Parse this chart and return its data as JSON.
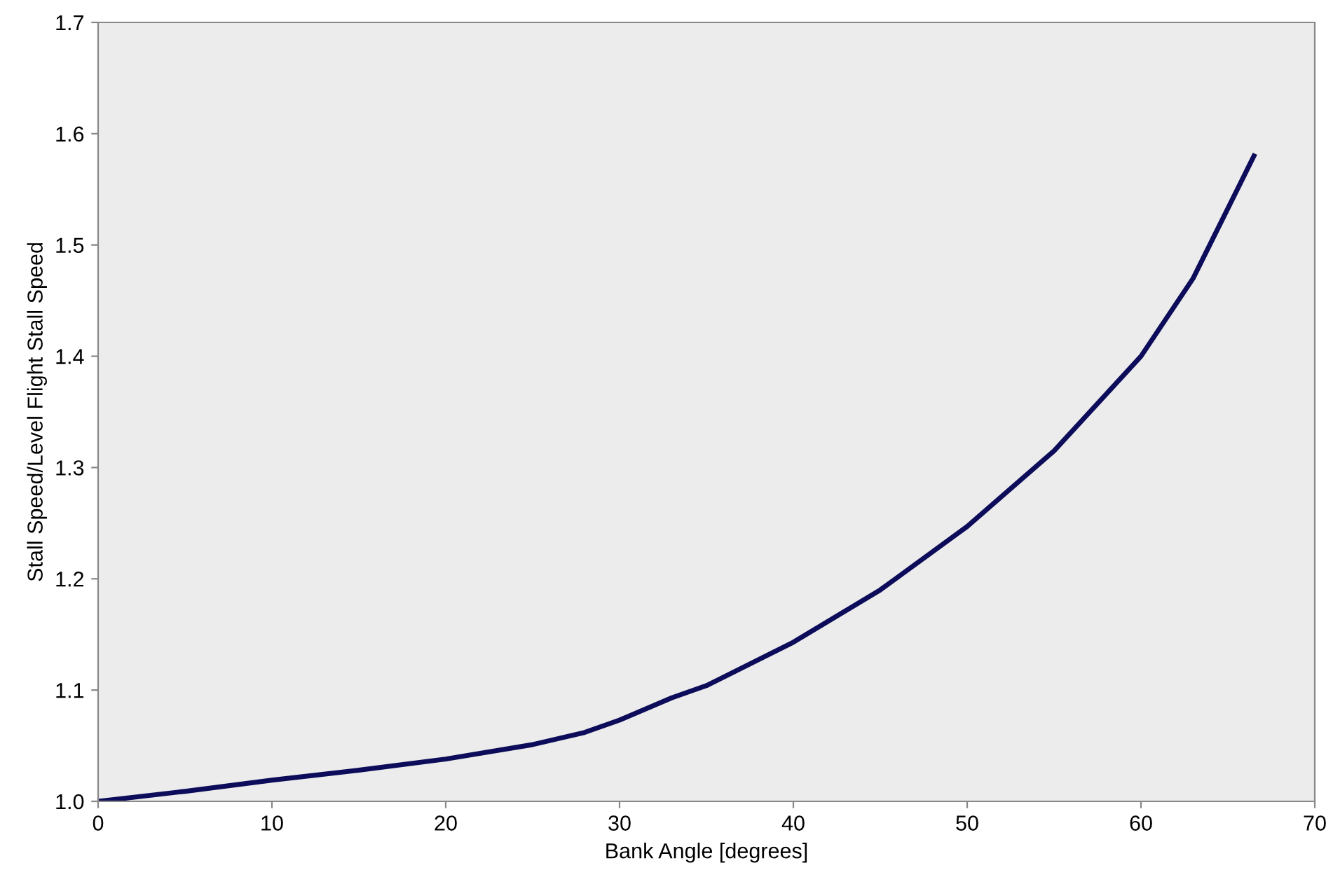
{
  "chart_data": {
    "type": "line",
    "xlabel": "Bank Angle [degrees]",
    "ylabel": "Stall Speed/Level Flight Stall Speed",
    "series": [
      {
        "color": "#0c0c5a",
        "x": [
          0,
          5,
          10,
          15,
          20,
          25,
          28,
          30,
          33,
          35,
          40,
          45,
          50,
          55,
          60,
          63,
          66.5
        ],
        "values": [
          1.0,
          1.009,
          1.019,
          1.028,
          1.038,
          1.051,
          1.062,
          1.073,
          1.093,
          1.104,
          1.143,
          1.19,
          1.247,
          1.315,
          1.4,
          1.47,
          1.58
        ]
      }
    ],
    "xlim": [
      0,
      70
    ],
    "xticks": [
      0,
      10,
      20,
      30,
      40,
      50,
      60,
      70
    ],
    "ylim": [
      1.0,
      1.7
    ],
    "yticks": [
      {
        "value": 1.0,
        "label": "1.0"
      },
      1.1,
      1.2,
      1.3,
      1.4,
      1.5,
      1.6,
      1.7
    ],
    "grid": false,
    "legend": false,
    "marker": "none",
    "line_style": "solid"
  }
}
